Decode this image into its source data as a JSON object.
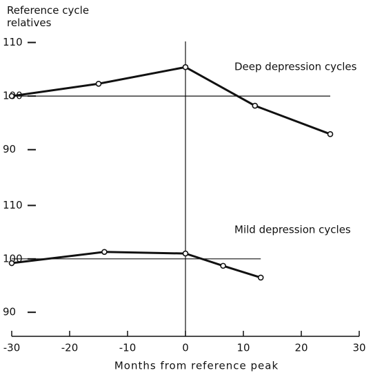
{
  "chart_data": {
    "type": "line",
    "ylabel": "Reference cycle relatives",
    "xlabel": "Months from reference peak",
    "xlim": [
      -30,
      30
    ],
    "xticks": [
      -30,
      -20,
      -10,
      0,
      10,
      20,
      30
    ],
    "color": "#111111",
    "panels": [
      {
        "title": "Deep depression cycles",
        "x": [
          -30,
          -15,
          0,
          12,
          25
        ],
        "values": [
          100,
          102.3,
          105.4,
          98.2,
          92.9
        ],
        "ylim": [
          87,
          112
        ],
        "yticks": [
          90,
          100,
          110
        ],
        "reference": 100
      },
      {
        "title": "Mild depression cycles",
        "x": [
          -30,
          -14,
          0,
          6.5,
          13
        ],
        "values": [
          99.2,
          101.3,
          101.0,
          98.7,
          96.5
        ],
        "ylim": [
          85.5,
          112
        ],
        "yticks": [
          90,
          100,
          110
        ],
        "reference": 100
      }
    ]
  }
}
